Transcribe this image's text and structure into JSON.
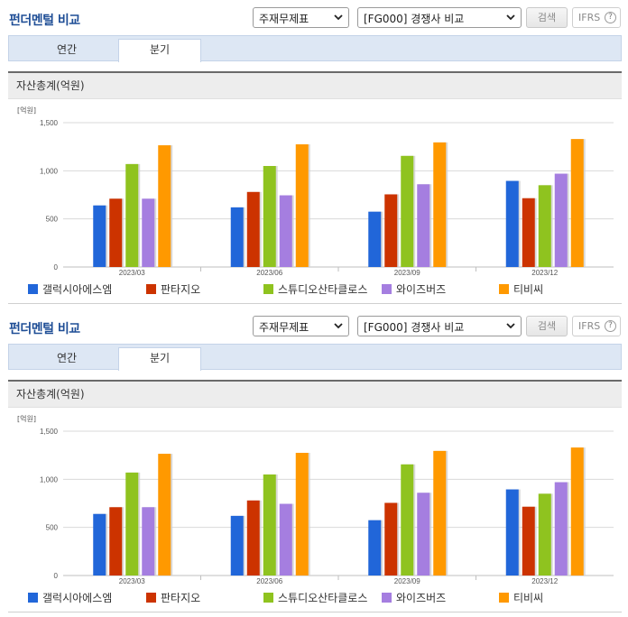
{
  "panels": [
    {
      "title": "펀더멘털 비교",
      "select_metric": "주재무제표",
      "select_group": "[FG000] 경쟁사 비교",
      "search_label": "검색",
      "ifrs_label": "IFRS",
      "ifrs_help": "?",
      "tabs": [
        {
          "label": "연간",
          "active": false
        },
        {
          "label": "분기",
          "active": true
        }
      ],
      "section_title": "자산총계(억원)"
    },
    {
      "title": "펀더멘털 비교",
      "select_metric": "주재무제표",
      "select_group": "[FG000] 경쟁사 비교",
      "search_label": "검색",
      "ifrs_label": "IFRS",
      "ifrs_help": "?",
      "tabs": [
        {
          "label": "연간",
          "active": false
        },
        {
          "label": "분기",
          "active": true
        }
      ],
      "section_title": "자산총계(억원)"
    }
  ],
  "chart_data": [
    {
      "type": "bar",
      "ylabel": "[억원]",
      "ylim": [
        0,
        1500
      ],
      "yticks": [
        0,
        500,
        1000,
        1500
      ],
      "ytick_labels": [
        "0",
        "500",
        "1,000",
        "1,500"
      ],
      "categories": [
        "2023/03",
        "2023/06",
        "2023/09",
        "2023/12"
      ],
      "grid": true,
      "legend_position": "bottom",
      "series": [
        {
          "name": "갤럭시아에스엠",
          "color": "#2166d9",
          "values": [
            640,
            620,
            575,
            895
          ]
        },
        {
          "name": "판타지오",
          "color": "#cc3300",
          "values": [
            710,
            780,
            755,
            715
          ]
        },
        {
          "name": "스튜디오산타클로스",
          "color": "#8fc31f",
          "values": [
            1070,
            1050,
            1155,
            850
          ]
        },
        {
          "name": "와이즈버즈",
          "color": "#a57ee0",
          "values": [
            710,
            745,
            860,
            970
          ]
        },
        {
          "name": "티비씨",
          "color": "#ff9900",
          "values": [
            1265,
            1275,
            1295,
            1330
          ]
        }
      ]
    },
    {
      "type": "bar",
      "ylabel": "[억원]",
      "ylim": [
        0,
        1500
      ],
      "yticks": [
        0,
        500,
        1000,
        1500
      ],
      "ytick_labels": [
        "0",
        "500",
        "1,000",
        "1,500"
      ],
      "categories": [
        "2023/03",
        "2023/06",
        "2023/09",
        "2023/12"
      ],
      "grid": true,
      "legend_position": "bottom",
      "series": [
        {
          "name": "갤럭시아에스엠",
          "color": "#2166d9",
          "values": [
            640,
            620,
            575,
            895
          ]
        },
        {
          "name": "판타지오",
          "color": "#cc3300",
          "values": [
            710,
            780,
            755,
            715
          ]
        },
        {
          "name": "스튜디오산타클로스",
          "color": "#8fc31f",
          "values": [
            1070,
            1050,
            1155,
            850
          ]
        },
        {
          "name": "와이즈버즈",
          "color": "#a57ee0",
          "values": [
            710,
            745,
            860,
            970
          ]
        },
        {
          "name": "티비씨",
          "color": "#ff9900",
          "values": [
            1265,
            1275,
            1295,
            1330
          ]
        }
      ]
    }
  ]
}
